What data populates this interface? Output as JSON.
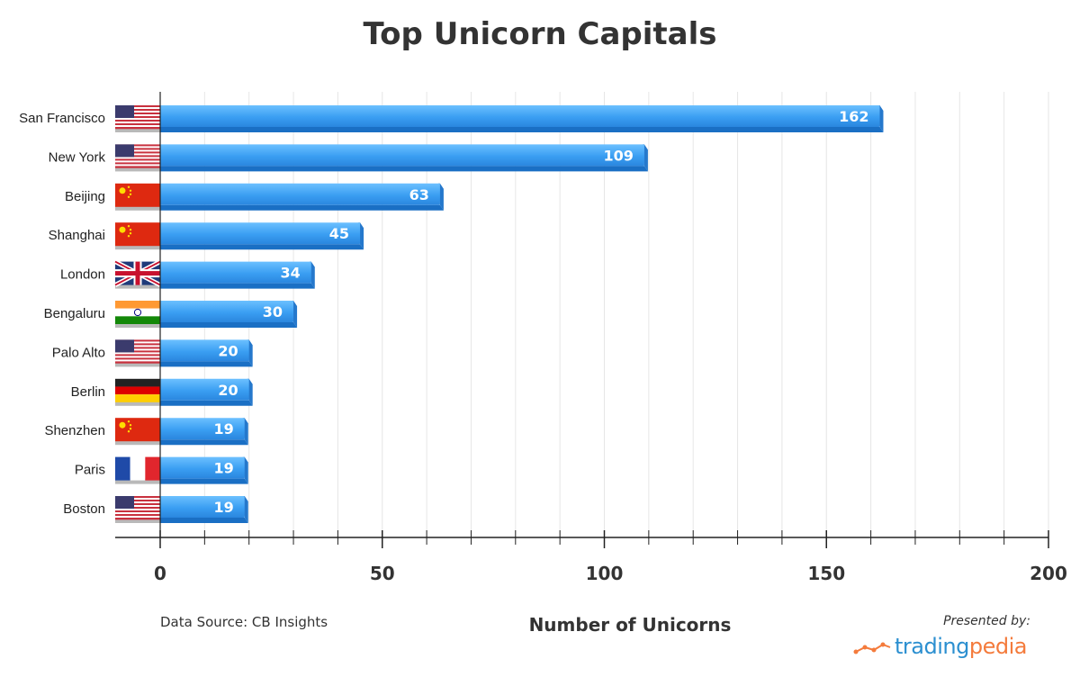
{
  "chart_data": {
    "type": "bar",
    "orientation": "horizontal",
    "title": "Top Unicorn Capitals",
    "xlabel": "Number of Unicorns",
    "categories": [
      "San Francisco",
      "New York",
      "Beijing",
      "Shanghai",
      "London",
      "Bengaluru",
      "Palo Alto",
      "Berlin",
      "Shenzhen",
      "Paris",
      "Boston"
    ],
    "flags": [
      "us",
      "us",
      "cn",
      "cn",
      "gb",
      "in",
      "us",
      "de",
      "cn",
      "fr",
      "us"
    ],
    "values": [
      162,
      109,
      63,
      45,
      34,
      30,
      20,
      20,
      19,
      19,
      19
    ],
    "xlim": [
      0,
      200
    ],
    "xticks": [
      0,
      50,
      100,
      150,
      200
    ],
    "grid": true,
    "bar_color": "#3a9ef2"
  },
  "footer": {
    "source": "Data Source: CB Insights",
    "presented_by": "Presented by:",
    "logo_part1": "trading",
    "logo_part2": "pedia"
  }
}
